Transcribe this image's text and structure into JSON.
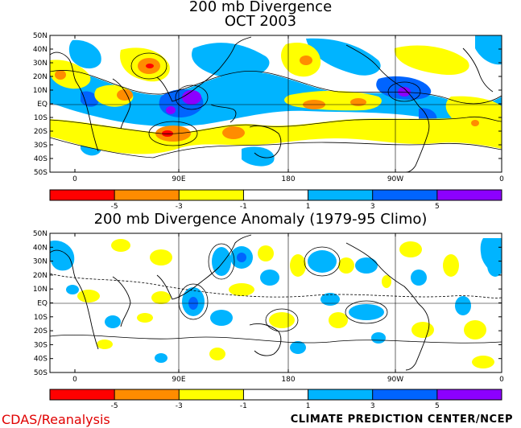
{
  "top": {
    "title_line1": "200 mb Divergence",
    "title_line2": "OCT 2003",
    "lat_labels": [
      "50N",
      "40N",
      "30N",
      "20N",
      "10N",
      "EQ",
      "10S",
      "20S",
      "30S",
      "40S",
      "50S"
    ],
    "lon_labels": [
      "0",
      "90E",
      "180",
      "90W",
      "0"
    ]
  },
  "bottom": {
    "title": "200 mb Divergence Anomaly (1979-95 Climo)",
    "lat_labels": [
      "50N",
      "40N",
      "30N",
      "20N",
      "10N",
      "EQ",
      "10S",
      "20S",
      "30S",
      "40S",
      "50S"
    ],
    "lon_labels": [
      "0",
      "90E",
      "180",
      "90W",
      "0"
    ]
  },
  "colorbar": {
    "ticks": [
      "-5",
      "-3",
      "-1",
      "1",
      "3",
      "5"
    ],
    "colors": [
      "#ff0000",
      "#ff8c00",
      "#ffff00",
      "#ffffff",
      "#00b4ff",
      "#0064ff",
      "#8c00ff"
    ]
  },
  "footer": {
    "left": "CDAS/Reanalysis",
    "right": "CLIMATE PREDICTION CENTER/NCEP"
  }
}
